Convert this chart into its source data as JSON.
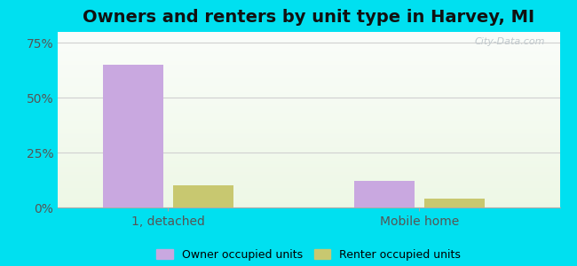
{
  "title": "Owners and renters by unit type in Harvey, MI",
  "categories": [
    "1, detached",
    "Mobile home"
  ],
  "owner_values": [
    65.0,
    12.0
  ],
  "renter_values": [
    10.0,
    4.0
  ],
  "owner_color": "#c9a8e0",
  "renter_color": "#c8c870",
  "bar_width": 0.12,
  "group_positions": [
    0.22,
    0.72
  ],
  "ylim": [
    0,
    80
  ],
  "yticks": [
    0,
    25,
    50,
    75
  ],
  "ytick_labels": [
    "0%",
    "25%",
    "50%",
    "75%"
  ],
  "legend_owner": "Owner occupied units",
  "legend_renter": "Renter occupied units",
  "background_outer": "#00e0f0",
  "grid_color": "#d0d0d0",
  "watermark": "City-Data.com",
  "title_fontsize": 14,
  "axis_fontsize": 10,
  "xlim": [
    0.0,
    1.0
  ]
}
